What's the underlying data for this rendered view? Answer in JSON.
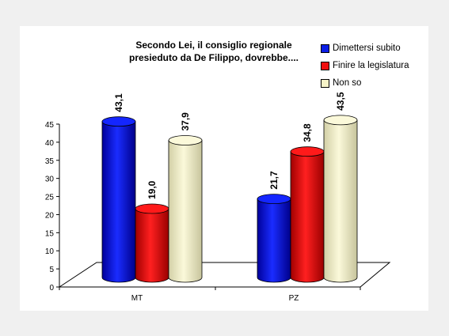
{
  "colors": {
    "series": [
      "#0a1ee6",
      "#f01010",
      "#f6f3c8"
    ],
    "axis": "#000000"
  },
  "chart_data": {
    "type": "bar",
    "title_lines": [
      "Secondo Lei, il consiglio regionale",
      "presieduto da De Filippo, dovrebbe...."
    ],
    "categories": [
      "MT",
      "PZ"
    ],
    "series": [
      {
        "name": "Dimettersi subito",
        "values": [
          43.1,
          21.7
        ],
        "labels": [
          "43,1",
          "21,7"
        ]
      },
      {
        "name": "Finire la legislatura",
        "values": [
          19.0,
          34.8
        ],
        "labels": [
          "19,0",
          "34,8"
        ]
      },
      {
        "name": "Non so",
        "values": [
          37.9,
          43.5
        ],
        "labels": [
          "37,9",
          "43,5"
        ]
      }
    ],
    "ylim": [
      0,
      45
    ],
    "yticks": [
      "0",
      "5",
      "10",
      "15",
      "20",
      "25",
      "30",
      "35",
      "40",
      "45"
    ],
    "xlabel": "",
    "ylabel": "",
    "legend": "top-right",
    "grid": false
  }
}
